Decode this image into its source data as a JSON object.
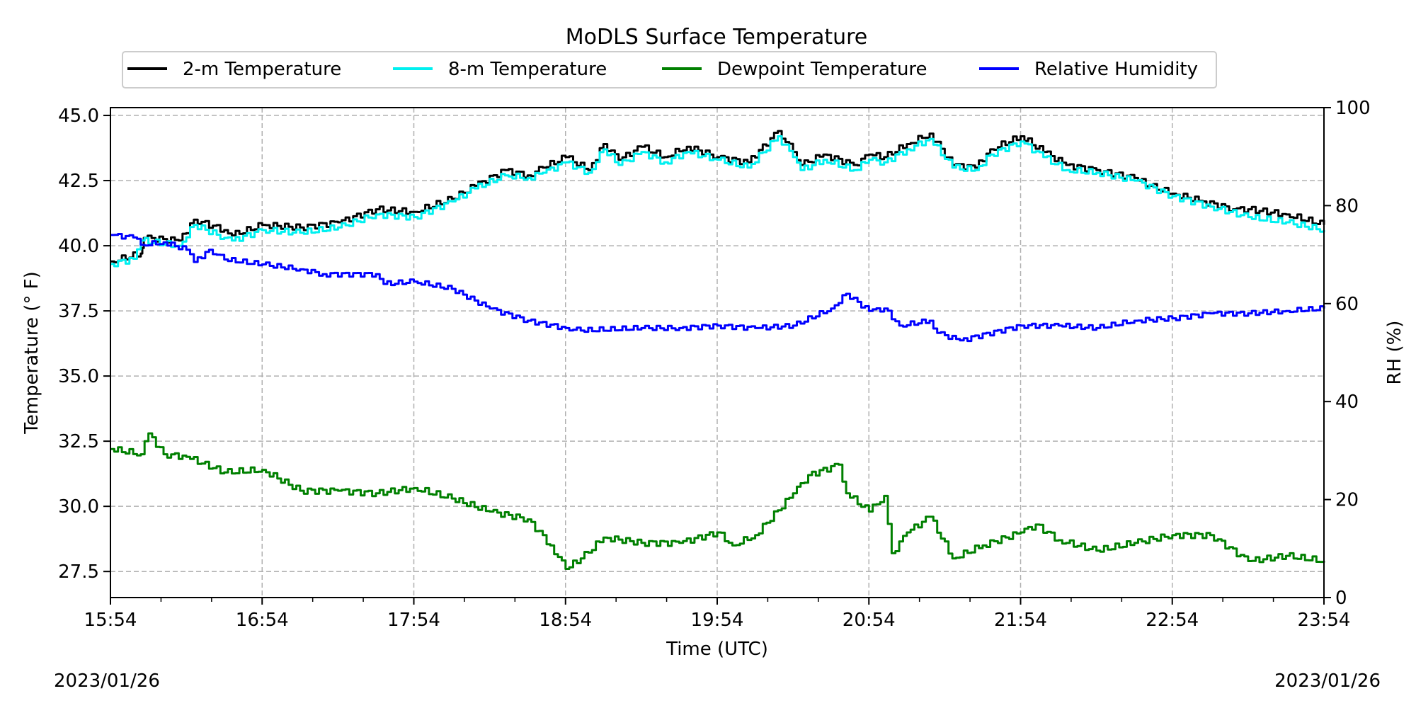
{
  "chart_data": {
    "type": "line",
    "title": "MoDLS Surface Temperature",
    "xlabel": "Time (UTC)",
    "ylabel": "Temperature ($^\\circ$F)",
    "ylabel_display": "Temperature (° F)",
    "ylabel_right": "RH (%)",
    "date_left": "2023/01/26",
    "date_right": "2023/01/26",
    "x_ticks": [
      "15:54",
      "16:54",
      "17:54",
      "18:54",
      "19:54",
      "20:54",
      "21:54",
      "22:54",
      "23:54"
    ],
    "x_range_hours": [
      0,
      8
    ],
    "y_ticks": [
      "27.5",
      "30.0",
      "32.5",
      "35.0",
      "37.5",
      "40.0",
      "42.5",
      "45.0"
    ],
    "ylim": [
      26.5,
      45.3
    ],
    "y2_ticks": [
      "0",
      "20",
      "40",
      "60",
      "80",
      "100"
    ],
    "y2lim": [
      0,
      100
    ],
    "grid": true,
    "legend_position": "top",
    "series": [
      {
        "name": "2-m Temperature",
        "axis": "left",
        "color": "#000000",
        "x": [
          0,
          0.2,
          0.22,
          0.45,
          0.55,
          0.75,
          0.8,
          1.0,
          1.25,
          1.5,
          1.75,
          2.0,
          2.25,
          2.4,
          2.6,
          2.75,
          2.85,
          3.0,
          3.15,
          3.25,
          3.35,
          3.5,
          3.65,
          3.8,
          4.0,
          4.2,
          4.4,
          4.5,
          4.55,
          4.7,
          4.9,
          5.0,
          5.1,
          5.25,
          5.4,
          5.55,
          5.7,
          5.8,
          6.0,
          6.15,
          6.3,
          6.5,
          6.75,
          6.85,
          7.0,
          7.2,
          7.4,
          7.5,
          7.75,
          8.0
        ],
        "values": [
          39.4,
          39.7,
          40.3,
          40.2,
          41.0,
          40.6,
          40.4,
          40.8,
          40.7,
          40.9,
          41.4,
          41.3,
          41.8,
          42.3,
          42.9,
          42.7,
          43.0,
          43.4,
          42.9,
          43.9,
          43.3,
          43.8,
          43.4,
          43.8,
          43.4,
          43.2,
          44.4,
          43.6,
          43.1,
          43.5,
          43.1,
          43.5,
          43.4,
          43.9,
          44.3,
          43.1,
          43.0,
          43.7,
          44.2,
          43.6,
          43.1,
          42.9,
          42.6,
          42.3,
          42.0,
          41.7,
          41.4,
          41.4,
          41.2,
          40.8
        ]
      },
      {
        "name": "8-m Temperature",
        "axis": "left",
        "color": "#00f0f0",
        "x": [
          0,
          0.15,
          0.2,
          0.45,
          0.55,
          0.75,
          0.8,
          1.0,
          1.25,
          1.5,
          1.75,
          2.0,
          2.25,
          2.4,
          2.6,
          2.75,
          2.85,
          3.0,
          3.15,
          3.25,
          3.35,
          3.5,
          3.65,
          3.8,
          4.0,
          4.2,
          4.4,
          4.5,
          4.55,
          4.7,
          4.9,
          5.0,
          5.1,
          5.25,
          5.4,
          5.55,
          5.7,
          5.8,
          6.0,
          6.15,
          6.3,
          6.5,
          6.75,
          7.0,
          7.25,
          7.5,
          7.75,
          8.0
        ],
        "values": [
          39.3,
          39.5,
          40.2,
          40.0,
          40.8,
          40.3,
          40.2,
          40.6,
          40.5,
          40.7,
          41.2,
          41.1,
          41.7,
          42.2,
          42.7,
          42.6,
          42.8,
          43.2,
          42.8,
          43.7,
          43.1,
          43.6,
          43.2,
          43.6,
          43.3,
          43.0,
          44.2,
          43.4,
          42.9,
          43.3,
          42.9,
          43.3,
          43.2,
          43.7,
          44.1,
          43.0,
          42.9,
          43.5,
          44.0,
          43.4,
          42.9,
          42.8,
          42.5,
          41.9,
          41.5,
          41.1,
          40.9,
          40.6
        ]
      },
      {
        "name": "Dewpoint Temperature",
        "axis": "left",
        "color": "#008000",
        "x": [
          0,
          0.2,
          0.25,
          0.35,
          0.5,
          0.75,
          1.0,
          1.25,
          1.5,
          1.75,
          2.0,
          2.25,
          2.5,
          2.75,
          2.9,
          3.0,
          3.1,
          3.25,
          3.5,
          3.75,
          4.0,
          4.1,
          4.25,
          4.5,
          4.6,
          4.8,
          4.85,
          5.0,
          5.1,
          5.15,
          5.25,
          5.4,
          5.55,
          5.75,
          6.0,
          6.1,
          6.25,
          6.5,
          6.75,
          7.0,
          7.25,
          7.5,
          7.75,
          8.0
        ],
        "values": [
          32.2,
          32.0,
          32.8,
          32.0,
          31.9,
          31.3,
          31.4,
          30.6,
          30.6,
          30.5,
          30.7,
          30.3,
          29.8,
          29.5,
          28.5,
          27.6,
          28.0,
          28.8,
          28.6,
          28.6,
          29.0,
          28.5,
          28.9,
          30.5,
          31.2,
          31.6,
          30.5,
          29.8,
          30.4,
          28.2,
          29.0,
          29.6,
          28.0,
          28.5,
          29.0,
          29.3,
          28.7,
          28.3,
          28.6,
          28.9,
          28.9,
          27.9,
          28.1,
          27.9
        ]
      },
      {
        "name": "Relative Humidity",
        "axis": "right",
        "color": "#0000ff",
        "x": [
          0,
          0.15,
          0.2,
          0.35,
          0.5,
          0.55,
          0.65,
          0.75,
          1.0,
          1.25,
          1.4,
          1.75,
          1.8,
          2.0,
          2.25,
          2.5,
          2.75,
          3.0,
          3.1,
          3.5,
          3.75,
          4.0,
          4.25,
          4.5,
          4.75,
          4.85,
          5.0,
          5.1,
          5.2,
          5.4,
          5.45,
          5.6,
          6.0,
          6.25,
          6.5,
          6.75,
          7.0,
          7.25,
          7.5,
          7.75,
          8.0
        ],
        "values": [
          74.0,
          73.5,
          72.0,
          72.5,
          71.0,
          68.5,
          71.0,
          69.0,
          68.0,
          67.0,
          66.0,
          66.0,
          64.0,
          64.5,
          63.0,
          59.0,
          56.5,
          55.0,
          54.5,
          55.0,
          55.0,
          55.5,
          55.0,
          55.5,
          59.0,
          62.0,
          58.5,
          59.0,
          55.5,
          56.5,
          54.0,
          52.5,
          55.5,
          55.5,
          55.0,
          56.5,
          57.0,
          58.0,
          58.0,
          58.5,
          59.0
        ]
      }
    ]
  }
}
